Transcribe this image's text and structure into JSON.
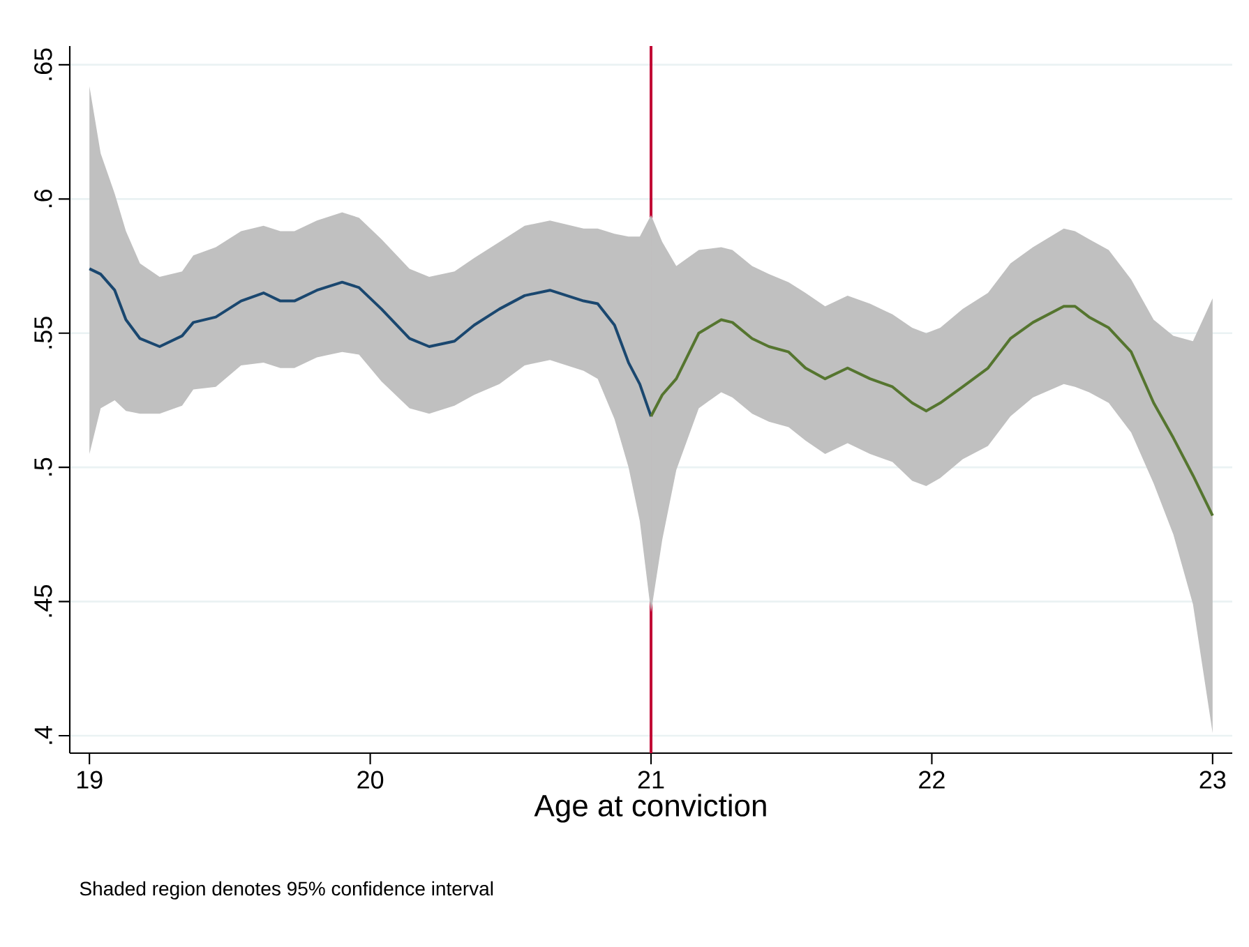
{
  "chart_data": {
    "type": "line",
    "xlabel": "Age at conviction",
    "annotations": [
      "Shaded region denotes 95% confidence interval"
    ],
    "xlim": [
      18.93,
      23.07
    ],
    "ylim": [
      0.3935,
      0.657
    ],
    "xticks": [
      19,
      20,
      21,
      22,
      23
    ],
    "yticks": [
      {
        "value": 0.4,
        "label": ".4"
      },
      {
        "value": 0.45,
        "label": ".45"
      },
      {
        "value": 0.5,
        "label": ".5"
      },
      {
        "value": 0.55,
        "label": ".55"
      },
      {
        "value": 0.6,
        "label": ".6"
      },
      {
        "value": 0.65,
        "label": ".65"
      }
    ],
    "grid": "y",
    "marker": "none",
    "line_style": "solid",
    "ref_lines": [
      {
        "axis": "x",
        "value": 21,
        "label": null,
        "color": "#c10534"
      }
    ],
    "series": [
      {
        "color": "#1a476f",
        "x": [
          19,
          19.04,
          19.09,
          19.13,
          19.18,
          19.25,
          19.33,
          19.37,
          19.45,
          19.54,
          19.62,
          19.68,
          19.73,
          19.81,
          19.9,
          19.96,
          20.04,
          20.14,
          20.21,
          20.3,
          20.37,
          20.46,
          20.55,
          20.64,
          20.76,
          20.81,
          20.87,
          20.92,
          20.96,
          21
        ],
        "values": [
          0.574,
          0.572,
          0.566,
          0.555,
          0.548,
          0.545,
          0.549,
          0.554,
          0.556,
          0.562,
          0.565,
          0.562,
          0.562,
          0.566,
          0.569,
          0.567,
          0.559,
          0.548,
          0.545,
          0.547,
          0.553,
          0.559,
          0.564,
          0.566,
          0.562,
          0.561,
          0.553,
          0.539,
          0.531,
          0.519
        ],
        "upper": [
          0.642,
          0.617,
          0.602,
          0.588,
          0.576,
          0.571,
          0.573,
          0.579,
          0.582,
          0.588,
          0.59,
          0.588,
          0.588,
          0.592,
          0.595,
          0.593,
          0.585,
          0.574,
          0.571,
          0.573,
          0.578,
          0.584,
          0.59,
          0.592,
          0.589,
          0.589,
          0.587,
          0.586,
          0.586,
          0.594
        ],
        "lower": [
          0.505,
          0.522,
          0.525,
          0.521,
          0.52,
          0.52,
          0.523,
          0.529,
          0.53,
          0.538,
          0.539,
          0.537,
          0.537,
          0.541,
          0.543,
          0.542,
          0.532,
          0.522,
          0.52,
          0.523,
          0.527,
          0.531,
          0.538,
          0.54,
          0.536,
          0.533,
          0.518,
          0.5,
          0.48,
          0.446
        ]
      },
      {
        "color": "#55752f",
        "x": [
          21,
          21.04,
          21.09,
          21.17,
          21.25,
          21.29,
          21.36,
          21.42,
          21.49,
          21.55,
          21.62,
          21.7,
          21.78,
          21.86,
          21.93,
          21.98,
          22.03,
          22.11,
          22.2,
          22.28,
          22.36,
          22.47,
          22.51,
          22.56,
          22.63,
          22.71,
          22.79,
          22.86,
          22.93,
          23
        ],
        "values": [
          0.519,
          0.527,
          0.533,
          0.55,
          0.555,
          0.554,
          0.548,
          0.545,
          0.543,
          0.537,
          0.533,
          0.537,
          0.533,
          0.53,
          0.524,
          0.521,
          0.524,
          0.53,
          0.537,
          0.548,
          0.554,
          0.56,
          0.56,
          0.556,
          0.552,
          0.543,
          0.524,
          0.511,
          0.497,
          0.482
        ],
        "upper": [
          0.594,
          0.584,
          0.575,
          0.581,
          0.582,
          0.581,
          0.575,
          0.572,
          0.569,
          0.565,
          0.56,
          0.564,
          0.561,
          0.557,
          0.552,
          0.55,
          0.552,
          0.559,
          0.565,
          0.576,
          0.582,
          0.589,
          0.588,
          0.585,
          0.581,
          0.57,
          0.555,
          0.549,
          0.547,
          0.563
        ],
        "lower": [
          0.446,
          0.473,
          0.499,
          0.522,
          0.528,
          0.526,
          0.52,
          0.517,
          0.515,
          0.51,
          0.505,
          0.509,
          0.505,
          0.502,
          0.495,
          0.493,
          0.496,
          0.503,
          0.508,
          0.519,
          0.526,
          0.531,
          0.53,
          0.528,
          0.524,
          0.513,
          0.494,
          0.475,
          0.449,
          0.401
        ]
      }
    ]
  }
}
